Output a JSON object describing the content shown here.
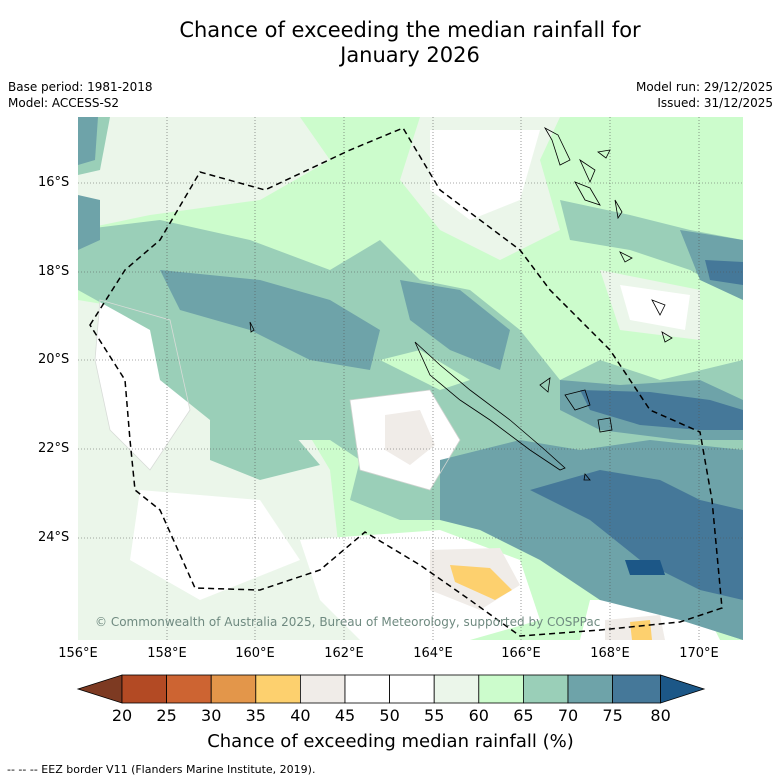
{
  "title_line1": "Chance of exceeding the median rainfall for",
  "title_line2": "January 2026",
  "base_period": "Base period: 1981-2018",
  "model": "Model: ACCESS-S2",
  "model_run": "Model run: 29/12/2025",
  "issued": "Issued: 31/12/2025",
  "lat_labels": [
    "16°S",
    "18°S",
    "20°S",
    "22°S",
    "24°S"
  ],
  "lon_labels": [
    "156°E",
    "158°E",
    "160°E",
    "162°E",
    "164°E",
    "166°E",
    "168°E",
    "170°E"
  ],
  "copyright": "© Commonwealth of Australia 2025, Bureau of Meteorology, supported by COSPPac",
  "colorbar": {
    "title": "Chance of exceeding median rainfall (%)",
    "ticks": [
      "20",
      "25",
      "30",
      "35",
      "40",
      "45",
      "50",
      "55",
      "60",
      "65",
      "70",
      "75",
      "80"
    ],
    "colors": [
      "#7d3a22",
      "#b34a24",
      "#cd6432",
      "#e3964a",
      "#fdd06e",
      "#f0ece8",
      "#ffffff",
      "#ffffff",
      "#ebf6ea",
      "#ccfccc",
      "#9acfb8",
      "#6ea3a9",
      "#457899",
      "#1c5787"
    ]
  },
  "legend_footer": "-- -- -- EEZ border V11 (Flanders Marine Institute, 2019)."
}
